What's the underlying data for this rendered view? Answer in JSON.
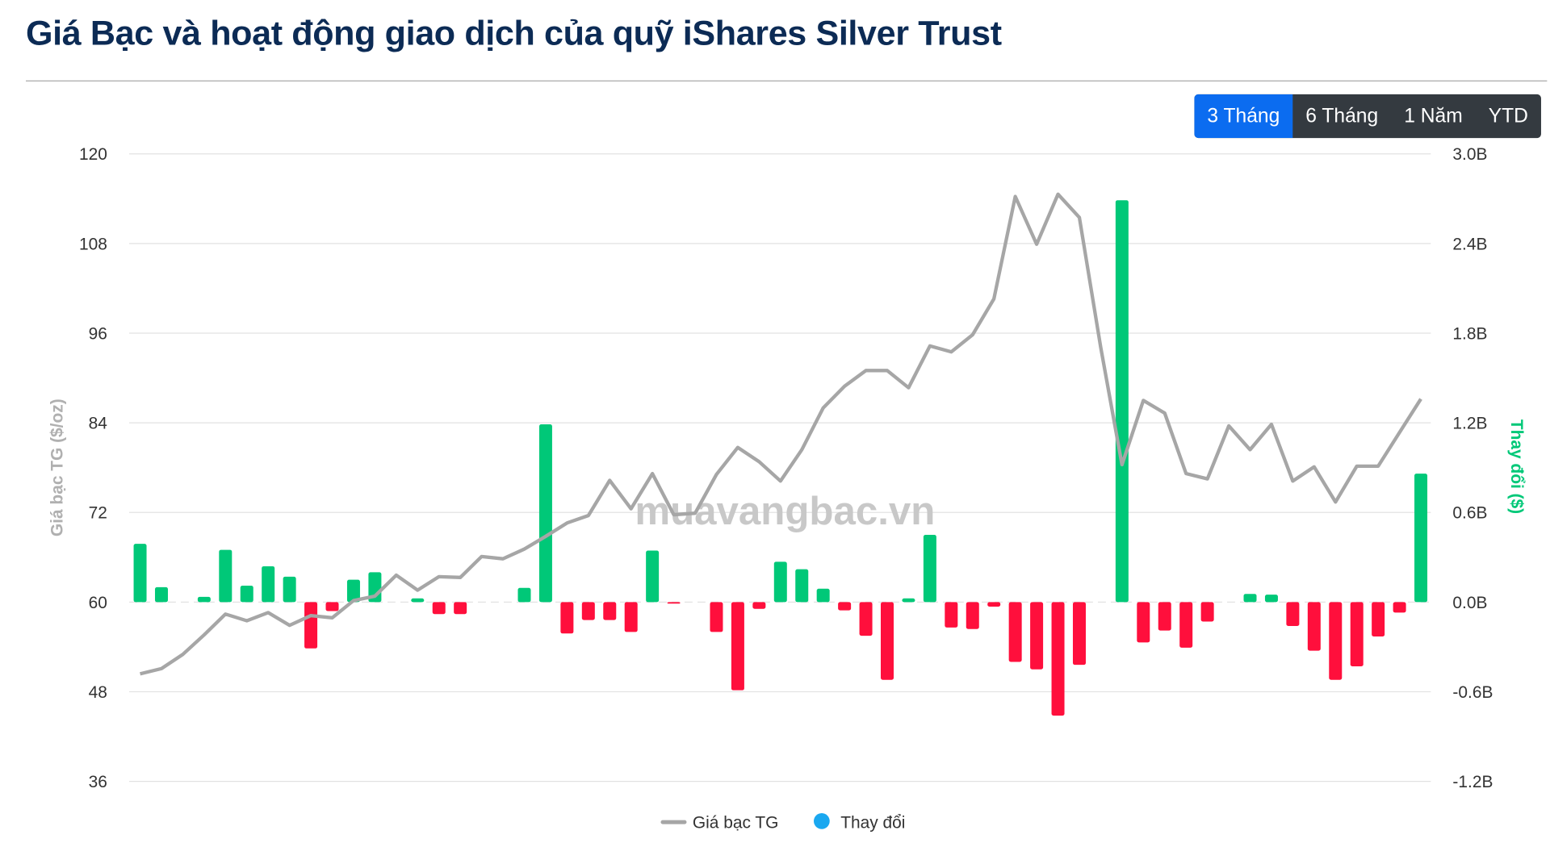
{
  "header": {
    "title": "Giá Bạc và hoạt động giao dịch của quỹ iShares Silver Trust"
  },
  "range_buttons": [
    {
      "label": "3 Tháng",
      "active": true
    },
    {
      "label": "6 Tháng",
      "active": false
    },
    {
      "label": "1 Năm",
      "active": false
    },
    {
      "label": "YTD",
      "active": false
    }
  ],
  "watermark": "muavangbac.vn",
  "colors": {
    "line": "#a6a6a6",
    "positive": "#00c878",
    "negative": "#ff0f3c",
    "legend_bar": "#1aa8f0",
    "active_button": "#0b6cf0",
    "title": "#0c2b55"
  },
  "chart_data": {
    "type": "bar+line",
    "left_axis": {
      "label": "Giá bạc TG ($/oz)",
      "range": [
        36,
        120
      ],
      "ticks": [
        "120",
        "108",
        "96",
        "84",
        "72",
        "60",
        "48",
        "36"
      ]
    },
    "right_axis": {
      "label": "Thay đổi ($)",
      "range": [
        -1.2,
        3.0
      ],
      "unit": "B",
      "ticks": [
        "3.0B",
        "2.4B",
        "1.8B",
        "1.2B",
        "0.6B",
        "0.0B",
        "-0.6B",
        "-1.2B"
      ]
    },
    "grid": true,
    "legend_position": "bottom",
    "series": [
      {
        "name": "Giá bạc TG",
        "type": "line",
        "axis": "left",
        "values": [
          50.4,
          51.1,
          53.0,
          55.6,
          58.4,
          57.5,
          58.6,
          56.9,
          58.2,
          57.9,
          60.2,
          60.8,
          63.6,
          61.6,
          63.4,
          63.3,
          66.1,
          65.8,
          67.1,
          68.8,
          70.6,
          71.6,
          76.3,
          72.5,
          77.2,
          71.7,
          71.9,
          77.1,
          80.7,
          78.8,
          76.2,
          80.4,
          86.0,
          88.9,
          91.0,
          91.0,
          88.7,
          94.3,
          93.5,
          95.8,
          100.6,
          114.3,
          107.9,
          114.6,
          111.5,
          94.1,
          78.4,
          87.0,
          85.3,
          77.2,
          76.5,
          83.6,
          80.4,
          83.8,
          76.2,
          78.1,
          73.4,
          78.2,
          78.2,
          82.7,
          87.2
        ]
      },
      {
        "name": "Thay đổi",
        "type": "bar",
        "axis": "right",
        "values": [
          0.39,
          0.1,
          0,
          0.035,
          0.35,
          0.11,
          0.24,
          0.17,
          -0.31,
          -0.06,
          0.15,
          0.2,
          0,
          0.025,
          -0.08,
          -0.08,
          0,
          0,
          0.095,
          1.19,
          -0.21,
          -0.12,
          -0.12,
          -0.2,
          0.345,
          -0.01,
          0,
          -0.2,
          -0.59,
          -0.045,
          0.27,
          0.22,
          0.09,
          -0.055,
          -0.225,
          -0.52,
          0.025,
          0.45,
          -0.17,
          -0.18,
          -0.03,
          -0.4,
          -0.45,
          -0.76,
          -0.42,
          0,
          2.69,
          -0.27,
          -0.19,
          -0.305,
          -0.13,
          0,
          0.055,
          0.05,
          -0.16,
          -0.325,
          -0.52,
          -0.43,
          -0.23,
          -0.07,
          0.86
        ]
      }
    ]
  }
}
